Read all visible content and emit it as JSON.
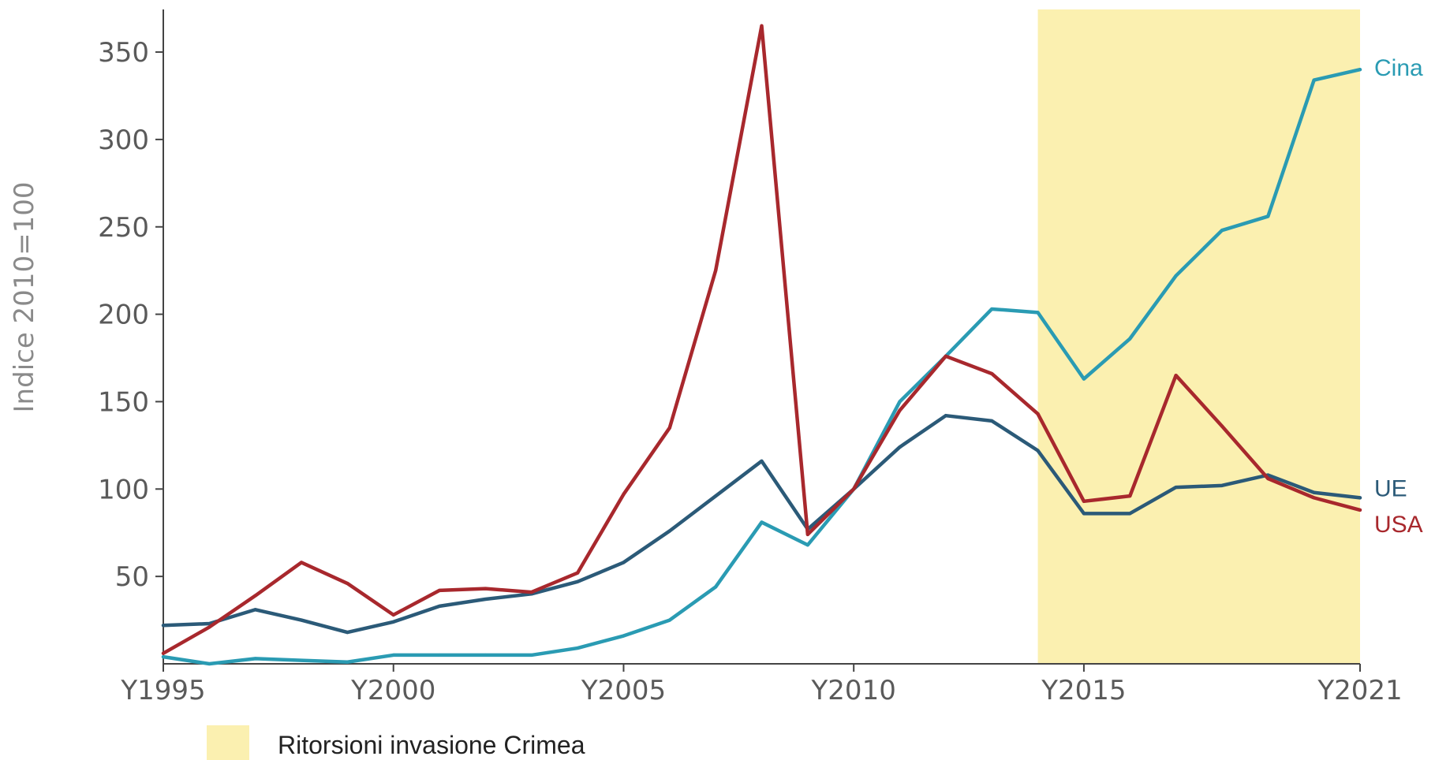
{
  "chart_data": {
    "type": "line",
    "ylabel": "Indice 2010=100",
    "ylim": [
      0,
      370
    ],
    "yticks": [
      50,
      100,
      150,
      200,
      250,
      300,
      350
    ],
    "xlim": [
      1995,
      2021
    ],
    "xticks": [
      {
        "value": 1995,
        "label": "Y1995"
      },
      {
        "value": 2000,
        "label": "Y2000"
      },
      {
        "value": 2005,
        "label": "Y2005"
      },
      {
        "value": 2010,
        "label": "Y2010"
      },
      {
        "value": 2015,
        "label": "Y2015"
      },
      {
        "value": 2021,
        "label": "Y2021"
      }
    ],
    "x": [
      1995,
      1996,
      1997,
      1998,
      1999,
      2000,
      2001,
      2002,
      2003,
      2004,
      2005,
      2006,
      2007,
      2008,
      2009,
      2010,
      2011,
      2012,
      2013,
      2014,
      2015,
      2016,
      2017,
      2018,
      2019,
      2020,
      2021
    ],
    "series": [
      {
        "name": "Cina",
        "color": "#2a9bb3",
        "values": [
          4,
          0,
          3,
          2,
          1,
          5,
          5,
          5,
          5,
          9,
          16,
          25,
          44,
          81,
          68,
          100,
          150,
          176,
          203,
          201,
          163,
          186,
          222,
          248,
          256,
          334,
          340
        ]
      },
      {
        "name": "UE",
        "color": "#2b5a78",
        "values": [
          22,
          23,
          31,
          25,
          18,
          24,
          33,
          37,
          40,
          47,
          58,
          76,
          96,
          116,
          77,
          100,
          124,
          142,
          139,
          122,
          86,
          86,
          101,
          102,
          108,
          98,
          95
        ]
      },
      {
        "name": "USA",
        "color": "#a8282d",
        "values": [
          6,
          21,
          39,
          58,
          46,
          28,
          42,
          43,
          41,
          52,
          97,
          135,
          225,
          365,
          74,
          100,
          145,
          176,
          166,
          143,
          93,
          96,
          165,
          136,
          106,
          95,
          88
        ]
      }
    ],
    "highlight": {
      "from": 2014,
      "to": 2021,
      "label": "Ritorsioni invasione Crimea",
      "color": "#fbf0b0"
    },
    "grid": false,
    "legend": "bottom-left"
  }
}
